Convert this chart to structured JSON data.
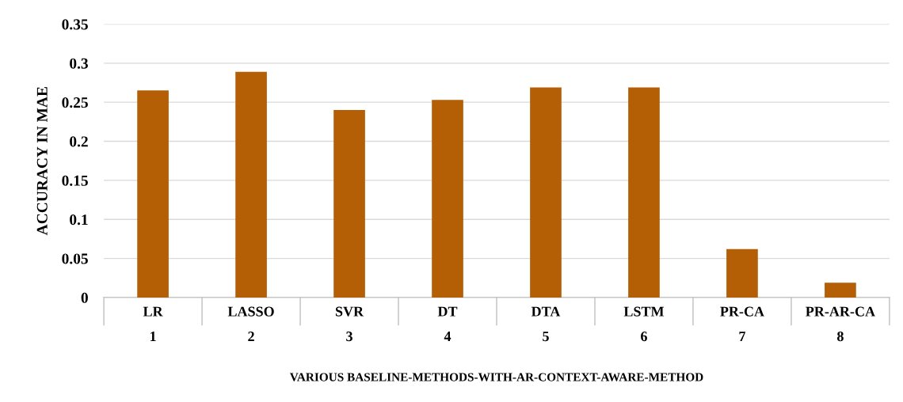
{
  "chart_data": {
    "type": "bar",
    "xlabel": "VARIOUS BASELINE-METHODS-WITH-AR-CONTEXT-AWARE-METHOD",
    "ylabel": "ACCURACY IN MAE",
    "categories": [
      "LR\n1",
      "LASSO\n2",
      "SVR\n3",
      "DT\n4",
      "DTA\n5",
      "LSTM\n6",
      "PR-CA\n7",
      "PR-AR-CA\n8"
    ],
    "values": [
      0.265,
      0.289,
      0.24,
      0.253,
      0.269,
      0.269,
      0.062,
      0.019
    ],
    "color": "#b45f06",
    "ylim": [
      0,
      0.35
    ],
    "yticks": [
      {
        "value": 0,
        "label": "0"
      },
      0.05,
      0.1,
      0.15,
      0.2,
      0.25,
      0.3,
      0.35
    ],
    "grid": "y"
  }
}
